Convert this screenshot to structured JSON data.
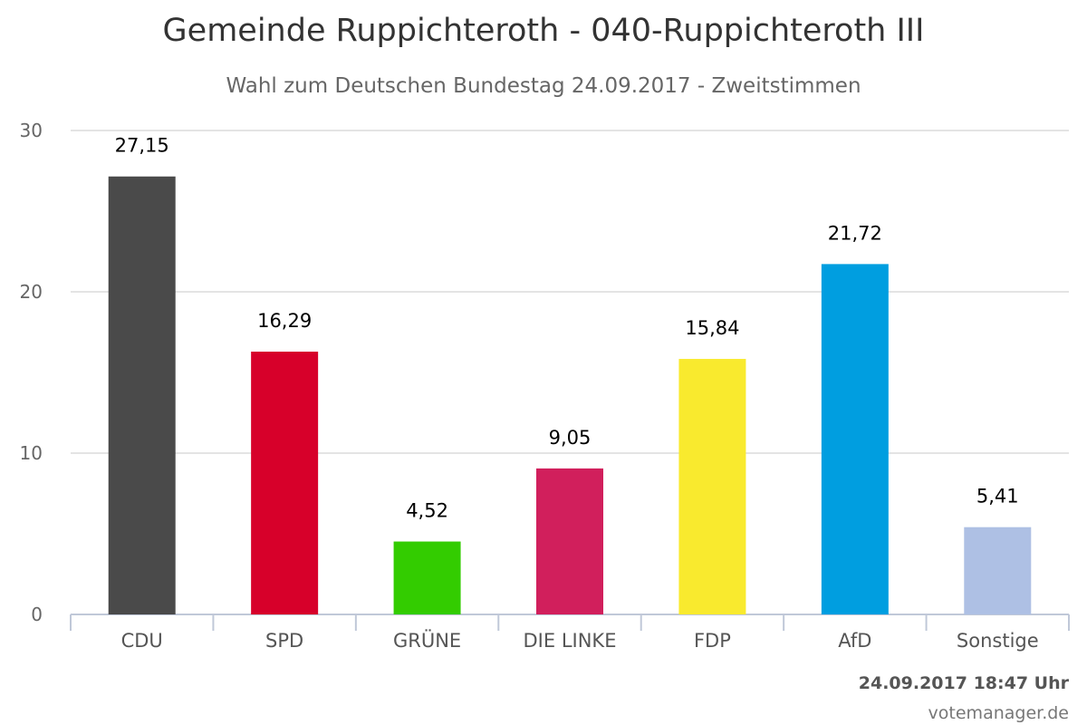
{
  "chart_data": {
    "type": "bar",
    "title": "Gemeinde Ruppichteroth - 040-Ruppichteroth III",
    "subtitle": "Wahl zum Deutschen Bundestag 24.09.2017 - Zweitstimmen",
    "categories": [
      "CDU",
      "SPD",
      "GRÜNE",
      "DIE LINKE",
      "FDP",
      "AfD",
      "Sonstige"
    ],
    "values": [
      27.15,
      16.29,
      4.52,
      9.05,
      15.84,
      21.72,
      5.41
    ],
    "value_labels": [
      "27,15",
      "16,29",
      "4,52",
      "9,05",
      "15,84",
      "21,72",
      "5,41"
    ],
    "colors": [
      "#4a4a4a",
      "#d7002a",
      "#33cc00",
      "#d11f5c",
      "#f9ea2e",
      "#009ee0",
      "#aec0e4"
    ],
    "yticks": [
      0,
      10,
      20,
      30
    ],
    "ylim": [
      0,
      30
    ],
    "grid": true,
    "legend": false
  },
  "footer": {
    "date": "24.09.2017 18:47 Uhr",
    "credit": "votemanager.de"
  }
}
